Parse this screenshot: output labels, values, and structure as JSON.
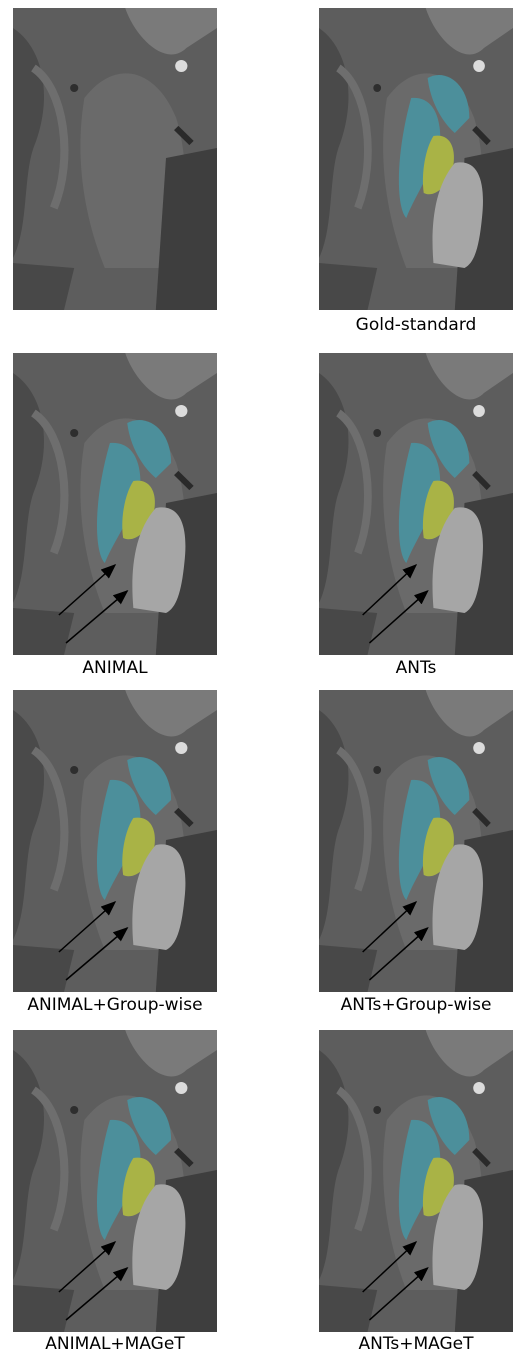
{
  "captions": [
    "Gold-standard",
    "ANIMAL",
    "ANTs",
    "ANIMAL+Group-wise",
    "ANTs+Group-wise",
    "ANIMAL+MAGeT",
    "ANTs+MAGeT"
  ]
}
